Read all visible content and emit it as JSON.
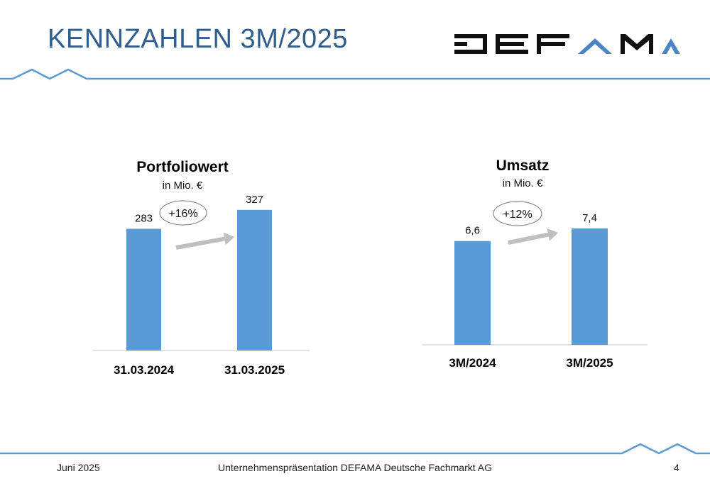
{
  "slide": {
    "title": "KENNZAHLEN 3M/2025",
    "footer_date": "Juni 2025",
    "footer_center": "Unternehmenspräsentation DEFAMA Deutsche Fachmarkt AG",
    "page_number": "4"
  },
  "logo": {
    "alt": "DEFAMA",
    "colors": {
      "dark": "#111111",
      "accent": "#4a86c5"
    }
  },
  "colors": {
    "title": "#2f5d8c",
    "bar": "#5b9bd5",
    "rule": "#5b9bd5",
    "arrow": "#bfbfbf",
    "axis": "#d9d9d9"
  },
  "chart_data": [
    {
      "type": "bar",
      "title": "Portfoliowert",
      "subtitle": "in Mio. €",
      "categories": [
        "31.03.2024",
        "31.03.2025"
      ],
      "values": [
        283,
        327
      ],
      "value_labels": [
        "283",
        "327"
      ],
      "change_label": "+16%"
    },
    {
      "type": "bar",
      "title": "Umsatz",
      "subtitle": "in Mio. €",
      "categories": [
        "3M/2024",
        "3M/2025"
      ],
      "values": [
        6.6,
        7.4
      ],
      "value_labels": [
        "6,6",
        "7,4"
      ],
      "change_label": "+12%"
    }
  ]
}
